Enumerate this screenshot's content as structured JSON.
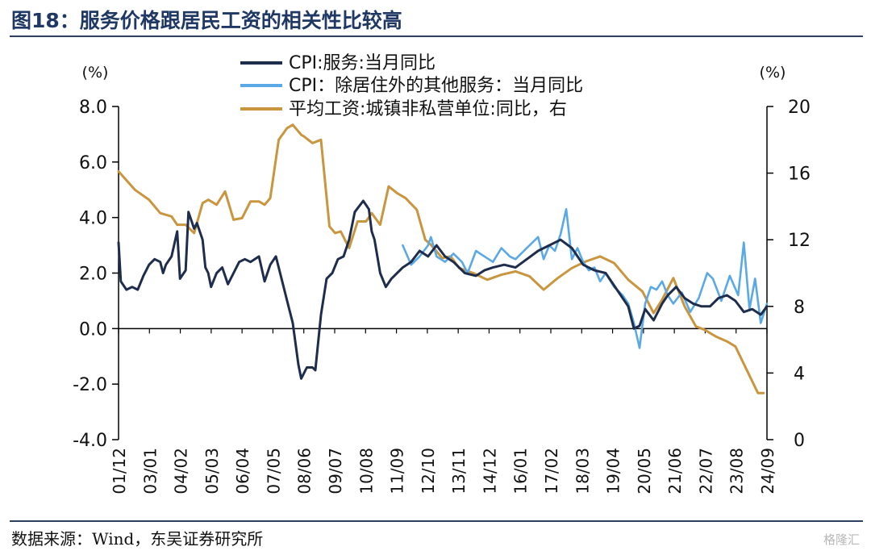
{
  "figure": {
    "title": "图18：服务价格跟居民工资的相关性比较高",
    "source": "数据来源：Wind，东吴证券研究所",
    "watermark": "格隆汇"
  },
  "chart_data": {
    "type": "line",
    "left_axis": {
      "unit": "(%)",
      "ylim": [
        -4,
        8
      ],
      "ticks": [
        "8.0",
        "6.0",
        "4.0",
        "2.0",
        "0.0",
        "-2.0",
        "-4.0"
      ],
      "tick_values": [
        8,
        6,
        4,
        2,
        0,
        -2,
        -4
      ]
    },
    "right_axis": {
      "unit": "(%)",
      "ylim": [
        0,
        20
      ],
      "ticks": [
        "20",
        "16",
        "12",
        "8",
        "4",
        "0"
      ],
      "tick_values": [
        20,
        16,
        12,
        8,
        4,
        0
      ]
    },
    "x_ticks": [
      "01/12",
      "03/01",
      "04/02",
      "05/03",
      "06/04",
      "07/05",
      "08/06",
      "09/07",
      "10/08",
      "11/09",
      "12/10",
      "13/11",
      "14/12",
      "16/01",
      "17/02",
      "18/03",
      "19/04",
      "20/05",
      "21/06",
      "22/07",
      "23/08",
      "24/09"
    ],
    "x_range": [
      2001.92,
      2024.92
    ],
    "legend_placement": "top-center",
    "colors": {
      "services": "#1f2d4d",
      "services_ex_housing": "#5aa9e6",
      "wages": "#c9963f",
      "axis": "#000000"
    },
    "series": [
      {
        "name": "CPI:服务:当月同比",
        "axis": "left",
        "x": [
          2001.92,
          2002.0,
          2002.2,
          2002.4,
          2002.6,
          2002.8,
          2003.0,
          2003.2,
          2003.4,
          2003.5,
          2003.6,
          2003.8,
          2004.0,
          2004.1,
          2004.3,
          2004.4,
          2004.6,
          2004.7,
          2004.9,
          2005.0,
          2005.1,
          2005.2,
          2005.4,
          2005.6,
          2005.8,
          2006.0,
          2006.2,
          2006.4,
          2006.6,
          2006.9,
          2007.1,
          2007.3,
          2007.5,
          2007.6,
          2007.9,
          2008.1,
          2008.3,
          2008.4,
          2008.6,
          2008.8,
          2008.9,
          2009.0,
          2009.1,
          2009.3,
          2009.5,
          2009.7,
          2009.9,
          2010.1,
          2010.3,
          2010.6,
          2010.8,
          2010.9,
          2011.0,
          2011.2,
          2011.4,
          2011.6,
          2011.8,
          2012.0,
          2012.3,
          2012.6,
          2012.9,
          2013.2,
          2013.5,
          2013.8,
          2014.2,
          2014.6,
          2014.9,
          2015.2,
          2015.6,
          2016.0,
          2016.4,
          2016.8,
          2017.2,
          2017.6,
          2018.0,
          2018.4,
          2018.8,
          2019.2,
          2019.6,
          2020.0,
          2020.2,
          2020.4,
          2020.6,
          2020.9,
          2021.2,
          2021.4,
          2021.7,
          2022.0,
          2022.3,
          2022.6,
          2022.9,
          2023.2,
          2023.5,
          2023.8,
          2024.1,
          2024.4,
          2024.7,
          2024.92
        ],
        "y": [
          3.1,
          1.7,
          1.4,
          1.5,
          1.4,
          1.9,
          2.3,
          2.5,
          2.4,
          2.0,
          2.3,
          2.6,
          3.5,
          1.8,
          2.1,
          4.2,
          3.6,
          3.8,
          3.2,
          2.2,
          2.0,
          1.5,
          2.0,
          2.2,
          1.6,
          2.0,
          2.4,
          2.5,
          2.4,
          2.6,
          1.7,
          2.3,
          2.6,
          2.2,
          1.0,
          0.2,
          -1.3,
          -1.8,
          -1.4,
          -1.4,
          -1.5,
          -0.5,
          0.5,
          1.8,
          2.0,
          2.5,
          2.6,
          3.2,
          4.2,
          4.6,
          4.3,
          3.5,
          3.2,
          2.0,
          1.5,
          1.8,
          2.0,
          2.2,
          2.4,
          2.8,
          2.6,
          3.0,
          2.6,
          2.4,
          2.0,
          1.9,
          2.1,
          2.2,
          2.3,
          2.2,
          2.5,
          2.8,
          3.0,
          3.2,
          2.9,
          2.3,
          2.1,
          2.0,
          1.4,
          0.8,
          0.0,
          0.1,
          0.7,
          0.3,
          0.9,
          1.2,
          1.5,
          1.1,
          0.9,
          0.8,
          0.8,
          1.1,
          1.2,
          1.0,
          0.6,
          0.7,
          0.5,
          0.8
        ]
      },
      {
        "name": "CPI：除居住外的其他服务：当月同比",
        "axis": "left",
        "x": [
          2012.0,
          2012.3,
          2012.6,
          2012.9,
          2013.0,
          2013.2,
          2013.5,
          2013.8,
          2014.1,
          2014.3,
          2014.6,
          2014.9,
          2015.2,
          2015.5,
          2015.8,
          2016.0,
          2016.4,
          2016.8,
          2017.0,
          2017.2,
          2017.4,
          2017.6,
          2017.8,
          2018.0,
          2018.2,
          2018.4,
          2018.6,
          2018.8,
          2019.0,
          2019.2,
          2019.5,
          2019.8,
          2020.0,
          2020.2,
          2020.4,
          2020.6,
          2020.8,
          2021.0,
          2021.2,
          2021.4,
          2021.6,
          2021.9,
          2022.2,
          2022.5,
          2022.8,
          2023.0,
          2023.3,
          2023.6,
          2023.9,
          2024.1,
          2024.3,
          2024.5,
          2024.7,
          2024.92
        ],
        "y": [
          3.0,
          2.3,
          2.6,
          3.0,
          3.3,
          2.6,
          2.4,
          2.7,
          2.4,
          2.0,
          2.8,
          2.6,
          2.4,
          2.9,
          2.6,
          2.5,
          2.9,
          3.3,
          2.5,
          3.0,
          2.8,
          3.4,
          4.3,
          2.5,
          2.9,
          2.4,
          2.1,
          2.2,
          1.7,
          2.0,
          1.5,
          1.2,
          0.9,
          0.2,
          -0.7,
          0.9,
          1.5,
          1.4,
          1.7,
          1.2,
          0.9,
          1.3,
          0.6,
          1.1,
          2.0,
          1.8,
          1.0,
          1.9,
          1.2,
          3.1,
          0.7,
          1.8,
          0.2,
          0.9
        ]
      },
      {
        "name": "平均工资:城镇非私营单位:同比，右",
        "axis": "right",
        "x": [
          2001.92,
          2002.5,
          2003.0,
          2003.4,
          2003.8,
          2004.0,
          2004.3,
          2004.6,
          2004.9,
          2005.1,
          2005.4,
          2005.7,
          2006.0,
          2006.3,
          2006.6,
          2006.9,
          2007.1,
          2007.3,
          2007.6,
          2007.9,
          2008.1,
          2008.4,
          2008.5,
          2008.8,
          2009.1,
          2009.4,
          2009.6,
          2009.8,
          2010.1,
          2010.4,
          2010.7,
          2010.9,
          2011.2,
          2011.5,
          2011.8,
          2012.1,
          2012.5,
          2012.8,
          2013.0,
          2013.4,
          2013.7,
          2014.0,
          2014.5,
          2015.0,
          2015.5,
          2016.0,
          2016.5,
          2017.0,
          2017.5,
          2018.0,
          2018.5,
          2019.0,
          2019.5,
          2020.0,
          2020.5,
          2020.9,
          2021.2,
          2021.6,
          2022.0,
          2022.4,
          2022.7,
          2023.1,
          2023.5,
          2023.8,
          2024.2,
          2024.6,
          2024.8
        ],
        "y": [
          16.1,
          15.0,
          14.4,
          13.6,
          13.4,
          12.9,
          12.9,
          12.4,
          14.2,
          14.4,
          14.1,
          14.9,
          13.2,
          13.3,
          14.3,
          14.3,
          14.1,
          14.5,
          18.0,
          18.7,
          18.9,
          18.3,
          18.2,
          17.8,
          18.0,
          12.8,
          12.4,
          12.5,
          11.5,
          13.1,
          13.1,
          13.6,
          12.9,
          15.2,
          14.8,
          14.5,
          13.8,
          12.0,
          11.7,
          10.9,
          11.0,
          10.3,
          10.0,
          9.6,
          9.9,
          10.1,
          9.8,
          9.0,
          9.7,
          10.3,
          10.7,
          11.0,
          10.6,
          9.6,
          8.9,
          7.6,
          8.4,
          9.7,
          8.0,
          6.8,
          6.6,
          6.2,
          5.9,
          5.6,
          4.2,
          2.8,
          2.8
        ]
      }
    ]
  }
}
